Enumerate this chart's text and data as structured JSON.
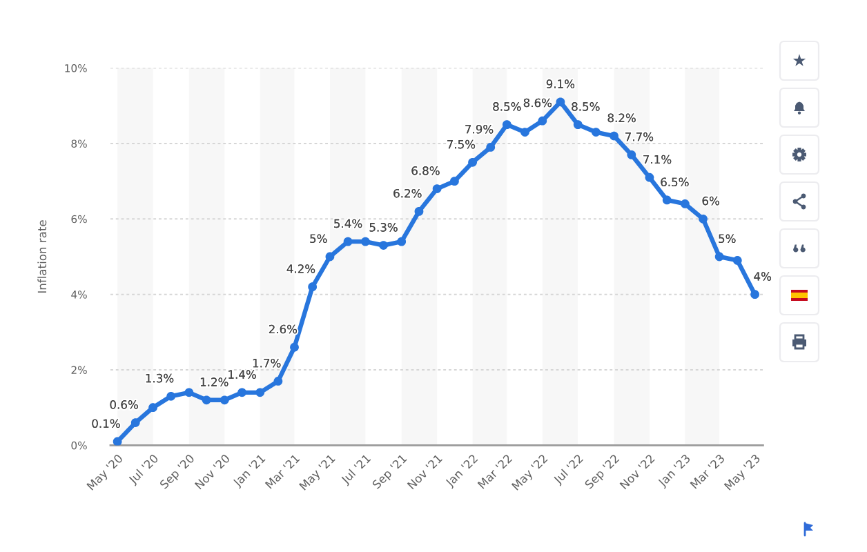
{
  "chart_data": {
    "type": "line",
    "ylabel": "Inflation rate",
    "x": [
      "2020-05",
      "2020-06",
      "2020-07",
      "2020-08",
      "2020-09",
      "2020-10",
      "2020-11",
      "2020-12",
      "2021-01",
      "2021-02",
      "2021-03",
      "2021-04",
      "2021-05",
      "2021-06",
      "2021-07",
      "2021-08",
      "2021-09",
      "2021-10",
      "2021-11",
      "2021-12",
      "2022-01",
      "2022-02",
      "2022-03",
      "2022-04",
      "2022-05",
      "2022-06",
      "2022-07",
      "2022-08",
      "2022-09",
      "2022-10",
      "2022-11",
      "2022-12",
      "2023-01",
      "2023-02",
      "2023-03",
      "2023-04",
      "2023-05"
    ],
    "series": [
      {
        "color": "#2876dd",
        "values": [
          0.1,
          0.6,
          1.0,
          1.3,
          1.4,
          1.2,
          1.2,
          1.4,
          1.4,
          1.7,
          2.6,
          4.2,
          5.0,
          5.4,
          5.4,
          5.3,
          5.4,
          6.2,
          6.8,
          7.0,
          7.5,
          7.9,
          8.5,
          8.3,
          8.6,
          9.1,
          8.5,
          8.3,
          8.2,
          7.7,
          7.1,
          6.5,
          6.4,
          6.0,
          5.0,
          4.9,
          4.0
        ],
        "value_labels": [
          "0.1%",
          "0.6%",
          null,
          "1.3%",
          null,
          "1.2%",
          null,
          "1.4%",
          null,
          "1.7%",
          "2.6%",
          "4.2%",
          "5%",
          "5.4%",
          null,
          "5.3%",
          null,
          "6.2%",
          "6.8%",
          null,
          "7.5%",
          "7.9%",
          "8.5%",
          null,
          "8.6%",
          "9.1%",
          "8.5%",
          null,
          "8.2%",
          "7.7%",
          "7.1%",
          "6.5%",
          null,
          "6%",
          "5%",
          null,
          "4%"
        ]
      }
    ],
    "xlim": [
      "2020-04-19",
      "2023-05-15"
    ],
    "xticks": [
      {
        "value": "2020-05",
        "label": "May '20"
      },
      {
        "value": "2020-07",
        "label": "Jul '20"
      },
      {
        "value": "2020-09",
        "label": "Sep '20"
      },
      {
        "value": "2020-11",
        "label": "Nov '20"
      },
      {
        "value": "2021-01",
        "label": "Jan '21"
      },
      {
        "value": "2021-03",
        "label": "Mar '21"
      },
      {
        "value": "2021-05",
        "label": "May '21"
      },
      {
        "value": "2021-07",
        "label": "Jul '21"
      },
      {
        "value": "2021-09",
        "label": "Sep '21"
      },
      {
        "value": "2021-11",
        "label": "Nov '21"
      },
      {
        "value": "2022-01",
        "label": "Jan '22"
      },
      {
        "value": "2022-03",
        "label": "Mar '22"
      },
      {
        "value": "2022-05",
        "label": "May '22"
      },
      {
        "value": "2022-07",
        "label": "Jul '22"
      },
      {
        "value": "2022-09",
        "label": "Sep '22"
      },
      {
        "value": "2022-11",
        "label": "Nov '22"
      },
      {
        "value": "2023-01",
        "label": "Jan '23"
      },
      {
        "value": "2023-03",
        "label": "Mar '23"
      },
      {
        "value": "2023-05",
        "label": "May '23"
      }
    ],
    "ylim": [
      0,
      10
    ],
    "yticks": [
      {
        "value": 0,
        "label": "0%"
      },
      {
        "value": 2,
        "label": "2%"
      },
      {
        "value": 4,
        "label": "4%"
      },
      {
        "value": 6,
        "label": "6%"
      },
      {
        "value": 8,
        "label": "8%"
      },
      {
        "value": 10,
        "label": "10%"
      }
    ],
    "bands": [
      {
        "axis": "x",
        "from": "2020-05",
        "to": "2020-07",
        "color": "#f7f7f7"
      },
      {
        "axis": "x",
        "from": "2020-09",
        "to": "2020-11",
        "color": "#f7f7f7"
      },
      {
        "axis": "x",
        "from": "2021-01",
        "to": "2021-03",
        "color": "#f7f7f7"
      },
      {
        "axis": "x",
        "from": "2021-05",
        "to": "2021-07",
        "color": "#f7f7f7"
      },
      {
        "axis": "x",
        "from": "2021-09",
        "to": "2021-11",
        "color": "#f7f7f7"
      },
      {
        "axis": "x",
        "from": "2022-01",
        "to": "2022-03",
        "color": "#f7f7f7"
      },
      {
        "axis": "x",
        "from": "2022-05",
        "to": "2022-07",
        "color": "#f7f7f7"
      },
      {
        "axis": "x",
        "from": "2022-09",
        "to": "2022-11",
        "color": "#f7f7f7"
      },
      {
        "axis": "x",
        "from": "2023-01",
        "to": "2023-03",
        "color": "#f7f7f7"
      }
    ],
    "grid": "y",
    "marker": "circle",
    "line_style": "solid"
  }
}
